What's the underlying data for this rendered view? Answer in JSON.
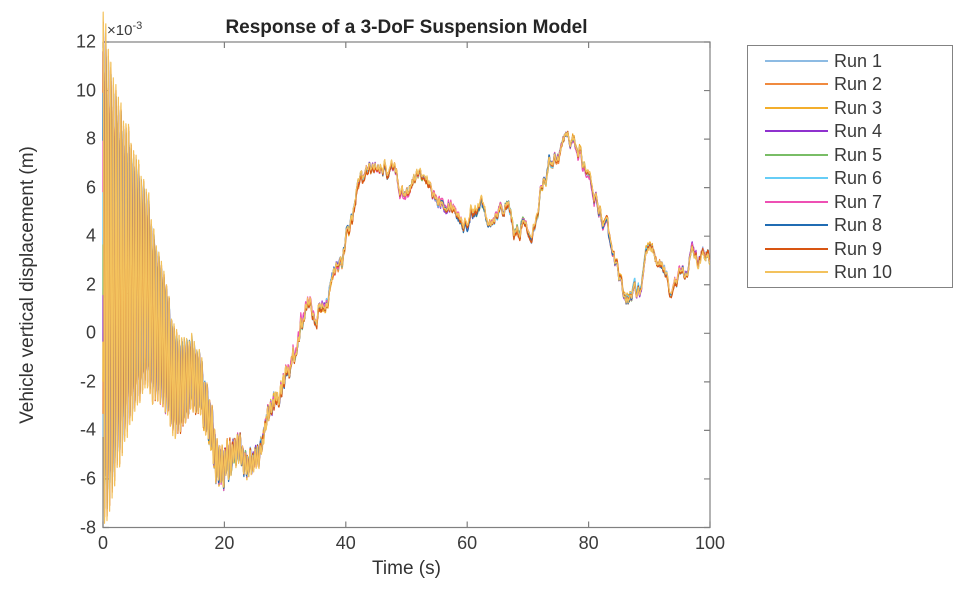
{
  "chart_data": {
    "type": "line",
    "title": "Response of a 3-DoF Suspension Model",
    "xlabel": "Time (s)",
    "ylabel": "Vehicle vertical displacement (m)",
    "y_exponent_label": {
      "prefix": "×10",
      "exponent": "-3"
    },
    "y_unit_scale": 0.001,
    "xlim": [
      0,
      100
    ],
    "ylim_display": [
      -8,
      12
    ],
    "x_ticks": [
      0,
      20,
      40,
      60,
      80,
      100
    ],
    "y_ticks": [
      -8,
      -6,
      -4,
      -2,
      0,
      2,
      4,
      6,
      8,
      10,
      12
    ],
    "grid": false,
    "axis_color": "#808080",
    "text_color": "#3a3a3a",
    "legend": {
      "position": "outside-top-right",
      "border_color": "#838383"
    },
    "series": [
      {
        "name": "Run 1",
        "color": "#8DBBE3"
      },
      {
        "name": "Run 2",
        "color": "#F08A3F"
      },
      {
        "name": "Run 3",
        "color": "#F3AE2C"
      },
      {
        "name": "Run 4",
        "color": "#8F31CE"
      },
      {
        "name": "Run 5",
        "color": "#79BD66"
      },
      {
        "name": "Run 6",
        "color": "#66CDF6"
      },
      {
        "name": "Run 7",
        "color": "#EE50B4"
      },
      {
        "name": "Run 8",
        "color": "#206CB3"
      },
      {
        "name": "Run 9",
        "color": "#D85512"
      },
      {
        "name": "Run 10",
        "color": "#F3C25D"
      }
    ],
    "shared_signal": {
      "description": "All 10 runs trace nearly the same curve; values in units of 1e-3 m, sampled every 1 s",
      "t_step": 1,
      "mean_values": [
        2.6,
        2.2,
        1.9,
        1.8,
        2.0,
        2.2,
        2.1,
        1.6,
        0.9,
        0.2,
        -0.7,
        -1.4,
        -2.0,
        -2.2,
        -1.8,
        -1.7,
        -2.1,
        -3.0,
        -4.3,
        -5.3,
        -5.6,
        -5.0,
        -4.6,
        -5.2,
        -5.7,
        -5.4,
        -4.6,
        -3.6,
        -2.9,
        -2.6,
        -1.9,
        -1.2,
        -0.4,
        0.6,
        1.0,
        0.9,
        1.1,
        1.6,
        2.3,
        2.9,
        3.6,
        4.6,
        5.8,
        6.4,
        6.6,
        7.0,
        7.1,
        6.6,
        6.8,
        5.9,
        5.7,
        6.3,
        6.5,
        6.1,
        5.8,
        5.6,
        5.8,
        5.7,
        5.3,
        4.8,
        4.6,
        5.2,
        5.4,
        5.1,
        4.9,
        5.3,
        5.4,
        4.9,
        3.9,
        4.5,
        4.3,
        4.8,
        5.9,
        6.8,
        7.2,
        7.6,
        8.0,
        8.1,
        7.8,
        7.2,
        6.3,
        5.6,
        5.0,
        4.2,
        3.0,
        2.1,
        1.6,
        1.8,
        1.7,
        2.3,
        3.2,
        3.1,
        2.7,
        2.2,
        1.8,
        2.3,
        2.8,
        3.2,
        3.0,
        3.1,
        3.2
      ],
      "transient_oscillation": {
        "amplitude": 9.5,
        "decay_tau_s": 7.5,
        "freq_hz": 2.4
      },
      "texture_noise": {
        "std": 0.22,
        "corr": 0.8
      },
      "observed_extremes": {
        "max": 10.3,
        "max_t": 1.0,
        "min": -6.9,
        "min_t": 1.3
      }
    },
    "run_variation": {
      "phase_step_rad": 0.22,
      "amp_step": 0.03,
      "offset_noise_std": 0.06
    }
  }
}
